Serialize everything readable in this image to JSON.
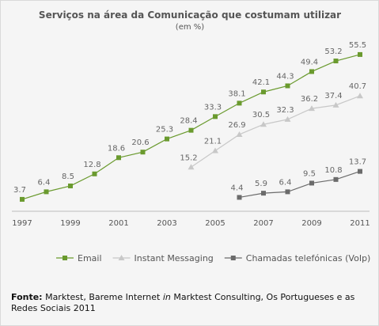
{
  "chart_data": {
    "type": "line",
    "title": "Serviços na área da Comunicação que costumam utilizar",
    "subtitle": "(em %)",
    "x": [
      1997,
      1998,
      1999,
      2000,
      2001,
      2002,
      2003,
      2004,
      2005,
      2006,
      2007,
      2008,
      2009,
      2010,
      2011
    ],
    "x_tick_labels": [
      "1997",
      "1999",
      "2001",
      "2003",
      "2005",
      "2007",
      "2009",
      "2011"
    ],
    "ylim": [
      0,
      60
    ],
    "grid": false,
    "legend_position": "bottom",
    "series": [
      {
        "name": "Email",
        "color": "#6a9a2e",
        "marker": "square",
        "x": [
          1997,
          1998,
          1999,
          2000,
          2001,
          2002,
          2003,
          2004,
          2005,
          2006,
          2007,
          2008,
          2009,
          2010,
          2011
        ],
        "values": [
          3.7,
          6.4,
          8.5,
          12.8,
          18.6,
          20.6,
          25.3,
          28.4,
          33.3,
          38.1,
          42.1,
          44.3,
          49.4,
          53.2,
          55.5
        ],
        "labels": [
          "3.7",
          "6.4",
          "8.5",
          "12.8",
          "18.6",
          "20.6",
          "25.3",
          "28.4",
          "33.3",
          "38.1",
          "42.1",
          "44.3",
          "49.4",
          "53.2",
          "55.5"
        ]
      },
      {
        "name": "Instant Messaging",
        "color": "#c8c8c8",
        "marker": "triangle",
        "x": [
          2004,
          2005,
          2006,
          2007,
          2008,
          2009,
          2010,
          2011
        ],
        "values": [
          15.2,
          21.1,
          26.9,
          30.5,
          32.3,
          36.2,
          37.4,
          40.7
        ],
        "labels": [
          "15.2",
          "21.1",
          "26.9",
          "30.5",
          "32.3",
          "36.2",
          "37.4",
          "40.7"
        ]
      },
      {
        "name": "Chamadas telefónicas (VoIp)",
        "color": "#6b6b6b",
        "marker": "square",
        "x": [
          2006,
          2007,
          2008,
          2009,
          2010,
          2011
        ],
        "values": [
          4.4,
          5.9,
          6.4,
          9.5,
          10.8,
          13.7
        ],
        "labels": [
          "4.4",
          "5.9",
          "6.4",
          "9.5",
          "10.8",
          "13.7"
        ]
      }
    ]
  },
  "source": {
    "label": "Fonte:",
    "text_1": " Marktest, Bareme Internet ",
    "text_in": "in",
    "text_2": " Marktest Consulting,  Os Portugueses e as Redes Sociais 2011"
  }
}
